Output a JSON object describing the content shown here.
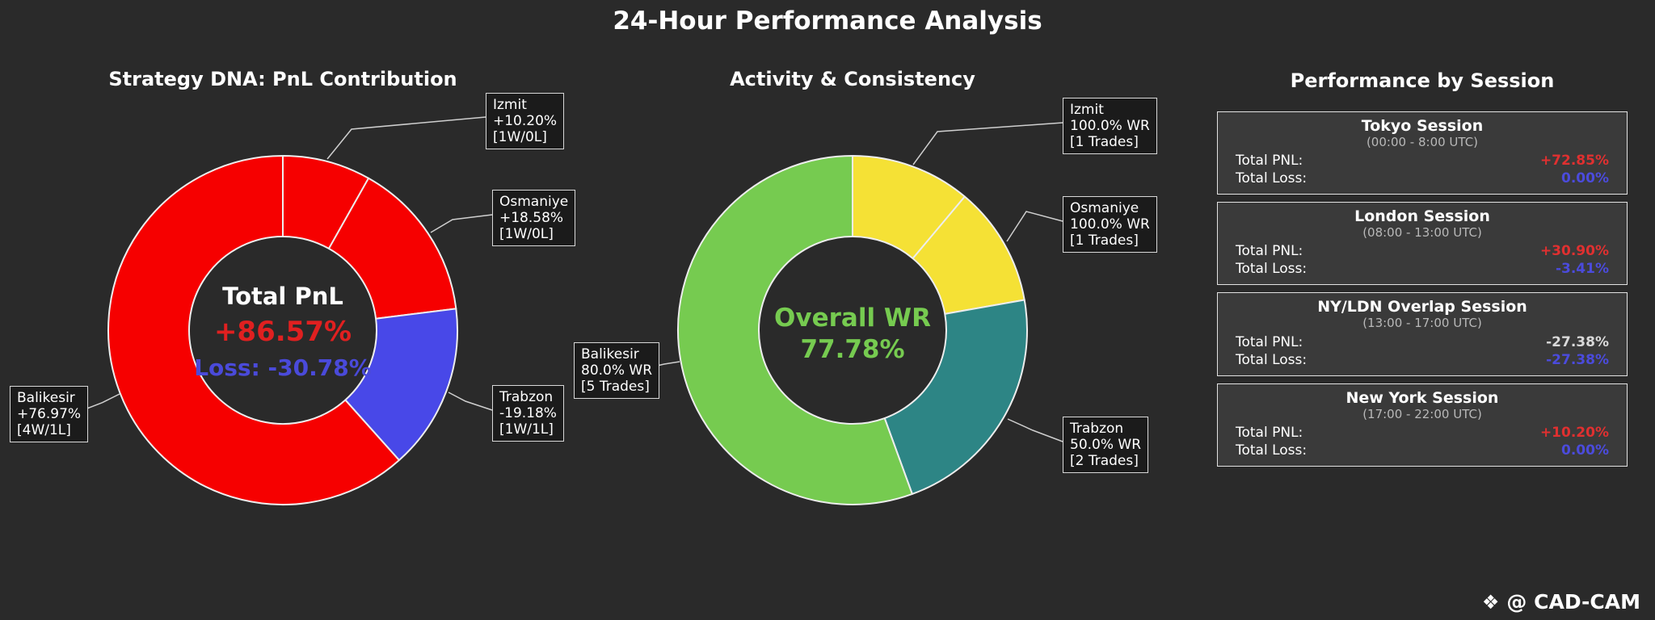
{
  "header": {
    "title": "24-Hour Performance Analysis"
  },
  "colors": {
    "background": "#2a2a2a",
    "wedge_red": "#f60000",
    "wedge_blue": "#4848e8",
    "wedge_green": "#76cb50",
    "wedge_yellow": "#f5e135",
    "wedge_teal": "#2d8585",
    "pnl_red_text": "#e02020",
    "loss_blue_text": "#4a4ada",
    "wr_green_text": "#76cb50",
    "session_pnl_positive": "#e03030",
    "session_pnl_negative": "#d9d9d9",
    "session_loss_blue": "#4b4bdc",
    "card_background": "#3a3a3a",
    "callout_background": "#1b1b1b"
  },
  "chart_data": [
    {
      "type": "pie",
      "subtype": "donut",
      "title": "Strategy DNA: PnL Contribution",
      "center_text": {
        "line1": "Total PnL",
        "line2": "+86.57%",
        "line3": "Loss: -30.78%"
      },
      "segments": [
        {
          "label": "Izmit",
          "value": 10.2,
          "color": "#f60000",
          "callout": [
            "Izmit",
            "+10.20%",
            "[1W/0L]"
          ]
        },
        {
          "label": "Osmaniye",
          "value": 18.58,
          "color": "#f60000",
          "callout": [
            "Osmaniye",
            "+18.58%",
            "[1W/0L]"
          ]
        },
        {
          "label": "Trabzon",
          "value": 19.18,
          "color": "#4848e8",
          "callout": [
            "Trabzon",
            "-19.18%",
            "[1W/1L]"
          ]
        },
        {
          "label": "Balikesir",
          "value": 76.97,
          "color": "#f60000",
          "callout": [
            "Balikesir",
            "+76.97%",
            "[4W/1L]"
          ]
        }
      ]
    },
    {
      "type": "pie",
      "subtype": "donut",
      "title": "Activity & Consistency",
      "center_text": {
        "line1": "Overall WR",
        "line2": "77.78%"
      },
      "segments": [
        {
          "label": "Izmit",
          "value": 1,
          "color": "#f5e135",
          "callout": [
            "Izmit",
            "100.0% WR",
            "[1 Trades]"
          ]
        },
        {
          "label": "Osmaniye",
          "value": 1,
          "color": "#f5e135",
          "callout": [
            "Osmaniye",
            "100.0% WR",
            "[1 Trades]"
          ]
        },
        {
          "label": "Trabzon",
          "value": 2,
          "color": "#2d8585",
          "callout": [
            "Trabzon",
            "50.0% WR",
            "[2 Trades]"
          ]
        },
        {
          "label": "Balikesir",
          "value": 5,
          "color": "#76cb50",
          "callout": [
            "Balikesir",
            "80.0% WR",
            "[5 Trades]"
          ]
        }
      ]
    },
    {
      "type": "table",
      "title": "Performance by Session",
      "row_labels": {
        "pnl": "Total PNL:",
        "loss": "Total Loss:"
      },
      "sessions": [
        {
          "name": "Tokyo Session",
          "time": "(00:00 - 8:00 UTC)",
          "pnl": "+72.85%",
          "loss": "0.00%"
        },
        {
          "name": "London Session",
          "time": "(08:00 - 13:00 UTC)",
          "pnl": "+30.90%",
          "loss": "-3.41%"
        },
        {
          "name": "NY/LDN Overlap Session",
          "time": "(13:00 - 17:00 UTC)",
          "pnl": "-27.38%",
          "loss": "-27.38%"
        },
        {
          "name": "New York Session",
          "time": "(17:00 - 22:00 UTC)",
          "pnl": "+10.20%",
          "loss": "0.00%"
        }
      ]
    }
  ],
  "footer": {
    "icon": "❖",
    "brand": "@ CAD-CAM"
  }
}
